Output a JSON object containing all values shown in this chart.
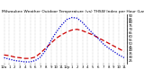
{
  "title": "Milwaukee Weather Outdoor Temperature (vs) THSW Index per Hour (Last 24 Hours)",
  "hours": [
    0,
    1,
    2,
    3,
    4,
    5,
    6,
    7,
    8,
    9,
    10,
    11,
    12,
    13,
    14,
    15,
    16,
    17,
    18,
    19,
    20,
    21,
    22,
    23
  ],
  "temp": [
    33,
    32,
    30,
    29,
    28,
    28,
    30,
    36,
    43,
    50,
    57,
    62,
    66,
    69,
    70,
    68,
    65,
    62,
    58,
    54,
    50,
    46,
    42,
    38
  ],
  "thsw": [
    29,
    27,
    25,
    24,
    23,
    23,
    25,
    30,
    40,
    54,
    66,
    76,
    84,
    87,
    86,
    80,
    72,
    64,
    57,
    49,
    43,
    38,
    33,
    29
  ],
  "temp_color": "#cc0000",
  "thsw_color": "#0000cc",
  "bg_color": "#ffffff",
  "ylim": [
    20,
    92
  ],
  "y_ticks": [
    25,
    30,
    35,
    40,
    45,
    50,
    55,
    60,
    65,
    70,
    75,
    80,
    85,
    90
  ],
  "title_fontsize": 3.2,
  "tick_fontsize": 2.8,
  "grid_color": "#999999",
  "x_tick_labels": [
    "12a",
    "1",
    "2",
    "3",
    "4",
    "5",
    "6",
    "7",
    "8",
    "9",
    "10",
    "11",
    "12p",
    "1",
    "2",
    "3",
    "4",
    "5",
    "6",
    "7",
    "8",
    "9",
    "10",
    "11"
  ]
}
